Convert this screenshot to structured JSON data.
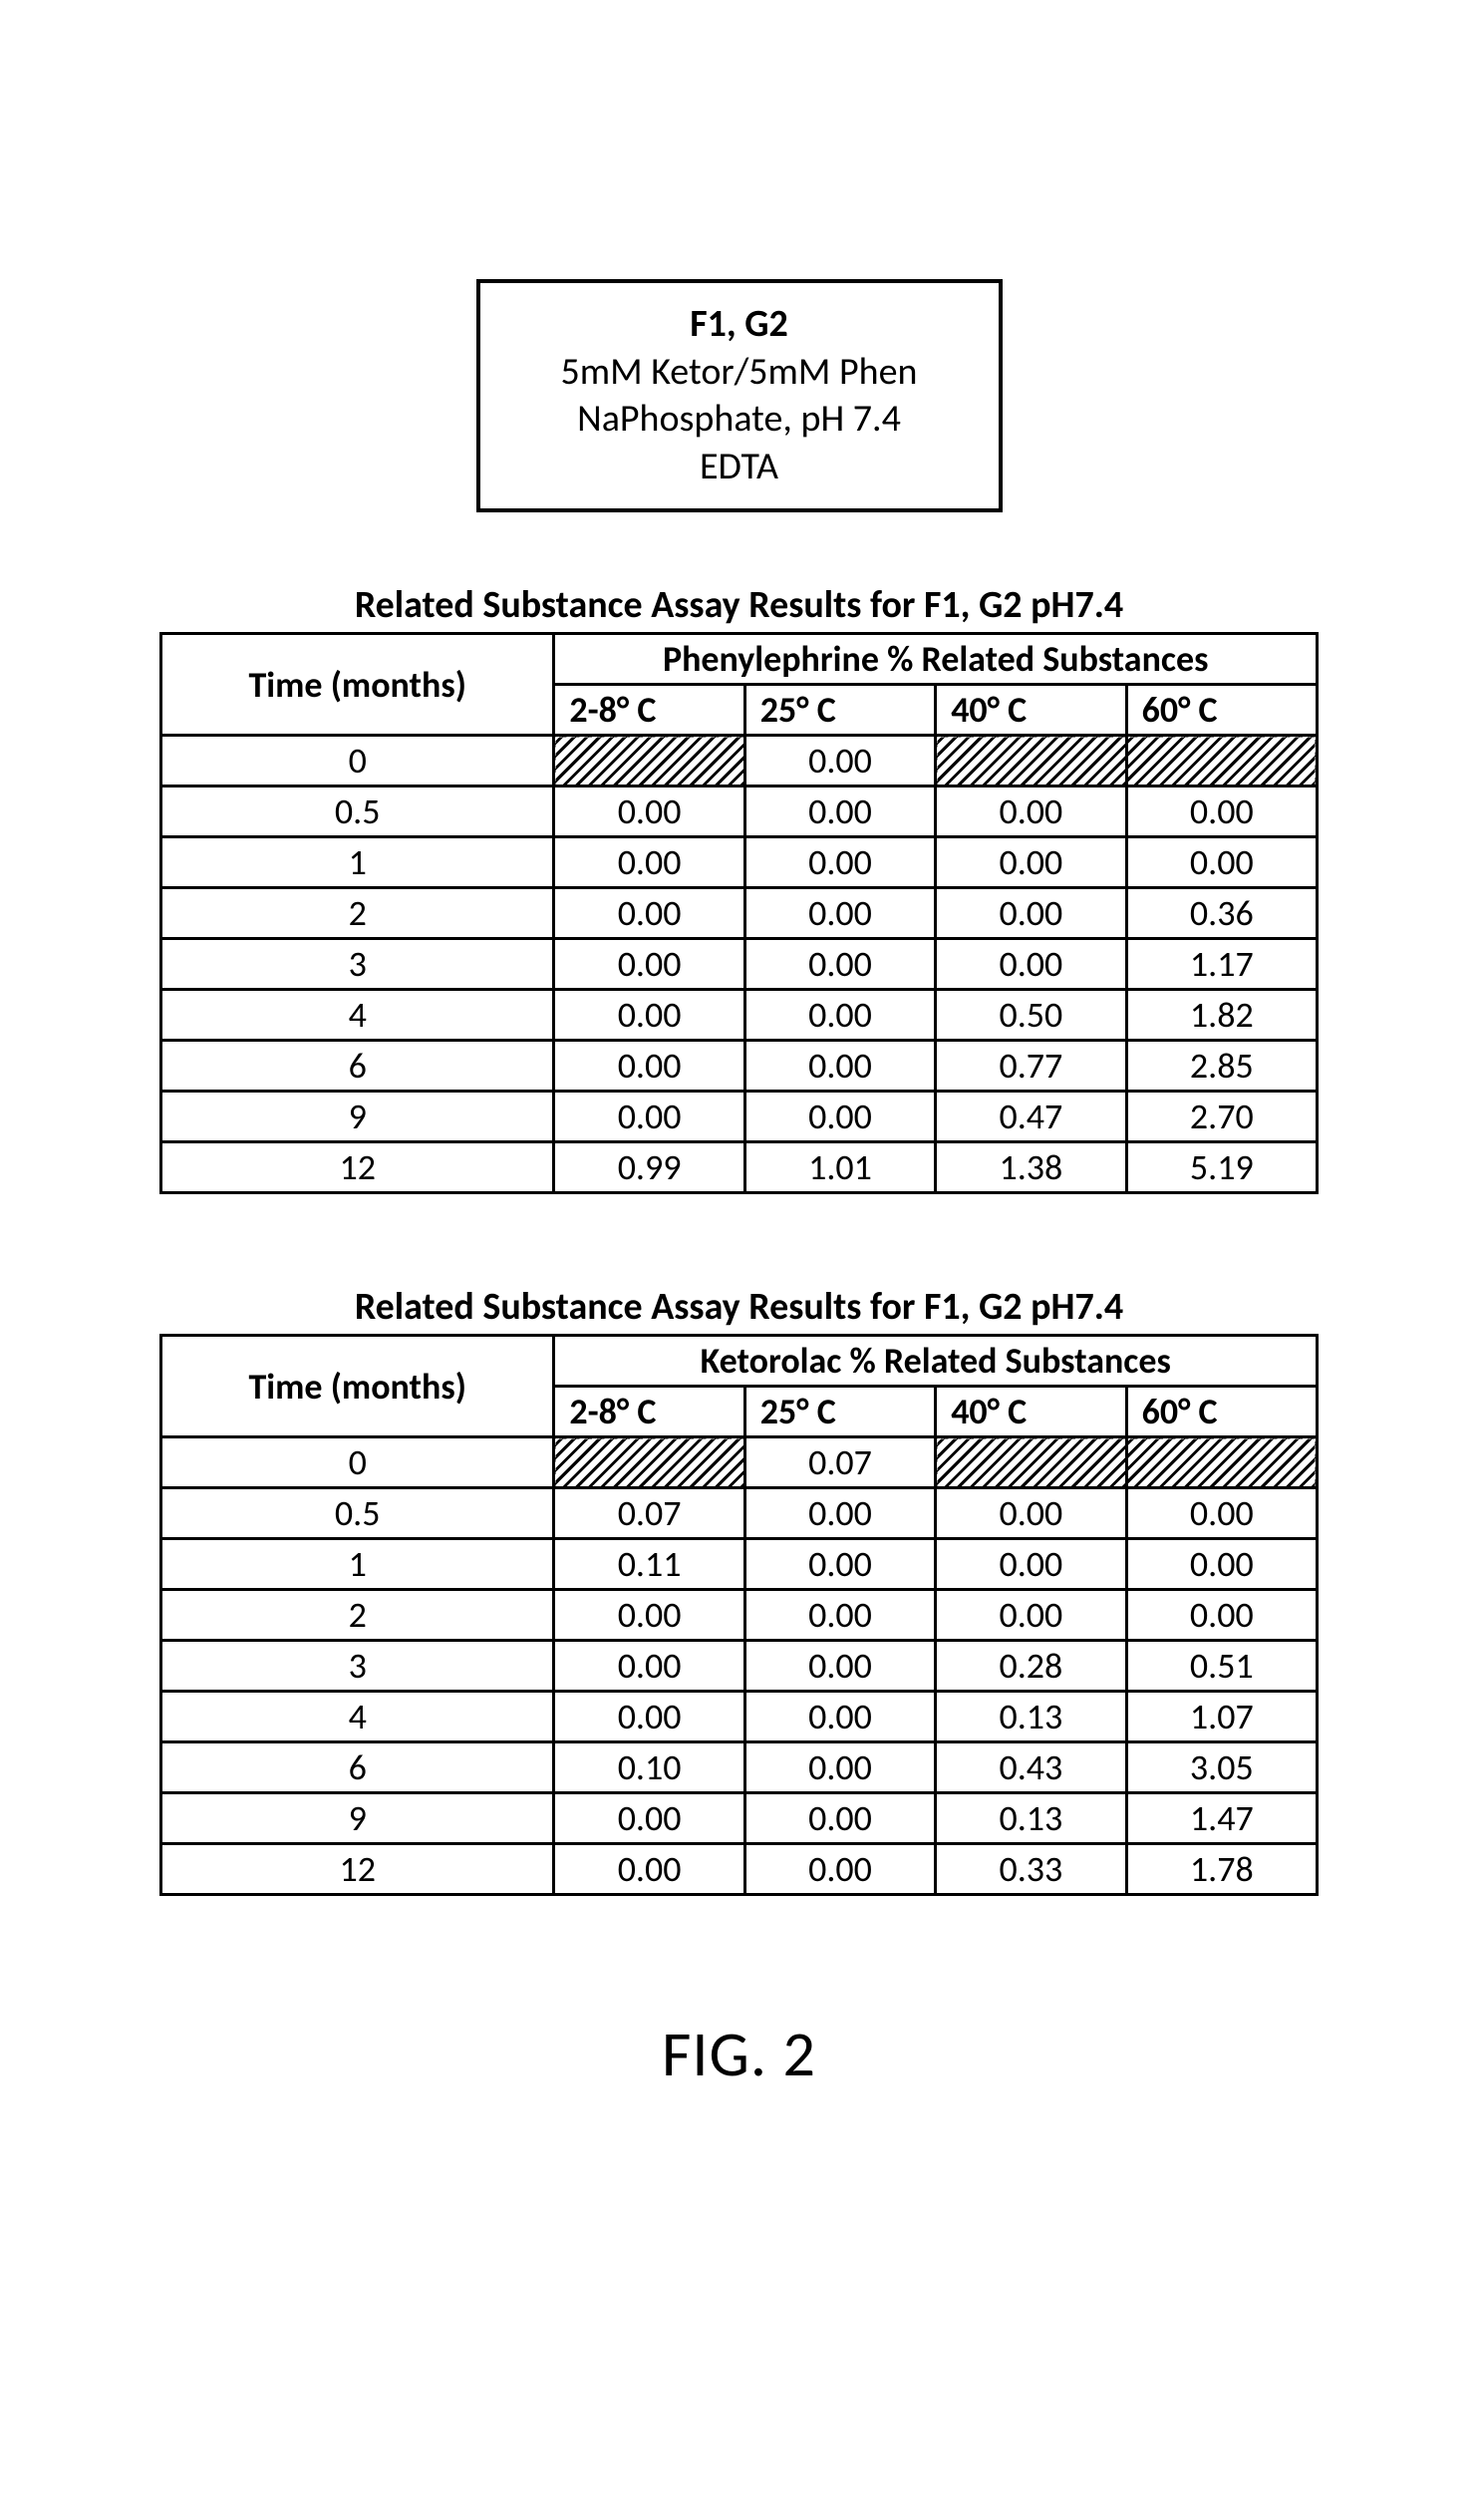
{
  "infoBox": {
    "title": "F1, G2",
    "line1": "5mM Ketor/5mM Phen",
    "line2": "NaPhosphate, pH 7.4",
    "line3": "EDTA"
  },
  "figureCaption": "FIG. 2",
  "tables": [
    {
      "title": "Related Substance Assay Results for F1, G2 pH7.4",
      "timeHeader": "Time (months)",
      "groupHeader": "Phenylephrine % Related Substances",
      "tempHeaders": [
        "2-8° C",
        "25° C",
        "40° C",
        "60° C"
      ],
      "rows": [
        {
          "time": "0",
          "cells": [
            {
              "hatched": true
            },
            {
              "value": "0.00"
            },
            {
              "hatched": true
            },
            {
              "hatched": true
            }
          ]
        },
        {
          "time": "0.5",
          "cells": [
            {
              "value": "0.00"
            },
            {
              "value": "0.00"
            },
            {
              "value": "0.00"
            },
            {
              "value": "0.00"
            }
          ]
        },
        {
          "time": "1",
          "cells": [
            {
              "value": "0.00"
            },
            {
              "value": "0.00"
            },
            {
              "value": "0.00"
            },
            {
              "value": "0.00"
            }
          ]
        },
        {
          "time": "2",
          "cells": [
            {
              "value": "0.00"
            },
            {
              "value": "0.00"
            },
            {
              "value": "0.00"
            },
            {
              "value": "0.36"
            }
          ]
        },
        {
          "time": "3",
          "cells": [
            {
              "value": "0.00"
            },
            {
              "value": "0.00"
            },
            {
              "value": "0.00"
            },
            {
              "value": "1.17"
            }
          ]
        },
        {
          "time": "4",
          "cells": [
            {
              "value": "0.00"
            },
            {
              "value": "0.00"
            },
            {
              "value": "0.50"
            },
            {
              "value": "1.82"
            }
          ]
        },
        {
          "time": "6",
          "cells": [
            {
              "value": "0.00"
            },
            {
              "value": "0.00"
            },
            {
              "value": "0.77"
            },
            {
              "value": "2.85"
            }
          ]
        },
        {
          "time": "9",
          "cells": [
            {
              "value": "0.00"
            },
            {
              "value": "0.00"
            },
            {
              "value": "0.47"
            },
            {
              "value": "2.70"
            }
          ]
        },
        {
          "time": "12",
          "cells": [
            {
              "value": "0.99"
            },
            {
              "value": "1.01"
            },
            {
              "value": "1.38"
            },
            {
              "value": "5.19"
            }
          ]
        }
      ]
    },
    {
      "title": "Related Substance Assay Results for F1, G2 pH7.4",
      "timeHeader": "Time (months)",
      "groupHeader": "Ketorolac % Related Substances",
      "tempHeaders": [
        "2-8° C",
        "25° C",
        "40° C",
        "60° C"
      ],
      "rows": [
        {
          "time": "0",
          "cells": [
            {
              "hatched": true
            },
            {
              "value": "0.07"
            },
            {
              "hatched": true
            },
            {
              "hatched": true
            }
          ]
        },
        {
          "time": "0.5",
          "cells": [
            {
              "value": "0.07"
            },
            {
              "value": "0.00"
            },
            {
              "value": "0.00"
            },
            {
              "value": "0.00"
            }
          ]
        },
        {
          "time": "1",
          "cells": [
            {
              "value": "0.11"
            },
            {
              "value": "0.00"
            },
            {
              "value": "0.00"
            },
            {
              "value": "0.00"
            }
          ]
        },
        {
          "time": "2",
          "cells": [
            {
              "value": "0.00"
            },
            {
              "value": "0.00"
            },
            {
              "value": "0.00"
            },
            {
              "value": "0.00"
            }
          ]
        },
        {
          "time": "3",
          "cells": [
            {
              "value": "0.00"
            },
            {
              "value": "0.00"
            },
            {
              "value": "0.28"
            },
            {
              "value": "0.51"
            }
          ]
        },
        {
          "time": "4",
          "cells": [
            {
              "value": "0.00"
            },
            {
              "value": "0.00"
            },
            {
              "value": "0.13"
            },
            {
              "value": "1.07"
            }
          ]
        },
        {
          "time": "6",
          "cells": [
            {
              "value": "0.10"
            },
            {
              "value": "0.00"
            },
            {
              "value": "0.43"
            },
            {
              "value": "3.05"
            }
          ]
        },
        {
          "time": "9",
          "cells": [
            {
              "value": "0.00"
            },
            {
              "value": "0.00"
            },
            {
              "value": "0.13"
            },
            {
              "value": "1.47"
            }
          ]
        },
        {
          "time": "12",
          "cells": [
            {
              "value": "0.00"
            },
            {
              "value": "0.00"
            },
            {
              "value": "0.33"
            },
            {
              "value": "1.78"
            }
          ]
        }
      ]
    }
  ]
}
